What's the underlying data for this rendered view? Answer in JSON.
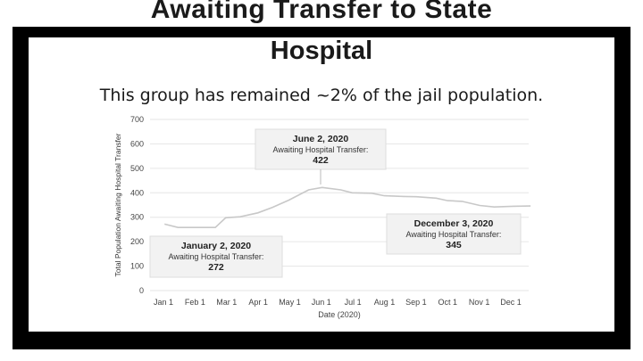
{
  "header": {
    "title_line1": "Awaiting Transfer to State",
    "title_line2": "Hospital",
    "subtitle": "This group has remained ~2% of the jail population."
  },
  "chart_data": {
    "type": "line",
    "xlabel": "Date (2020)",
    "ylabel": "Total Population Awaiting Hospital Transfer",
    "ylim": [
      0,
      700
    ],
    "yticks": [
      0,
      100,
      200,
      300,
      400,
      500,
      600,
      700
    ],
    "xticks": [
      "Jan 1",
      "Feb 1",
      "Mar 1",
      "Apr 1",
      "May 1",
      "Jun 1",
      "Jul 1",
      "Aug 1",
      "Sep 1",
      "Oct 1",
      "Nov 1",
      "Dec 1"
    ],
    "series": [
      {
        "color": "#c8c8c8",
        "points": [
          {
            "x": "2020-01-02",
            "y": 272
          },
          {
            "x": "2020-01-15",
            "y": 258
          },
          {
            "x": "2020-02-01",
            "y": 258
          },
          {
            "x": "2020-02-20",
            "y": 258
          },
          {
            "x": "2020-03-01",
            "y": 298
          },
          {
            "x": "2020-03-15",
            "y": 302
          },
          {
            "x": "2020-04-01",
            "y": 318
          },
          {
            "x": "2020-04-15",
            "y": 340
          },
          {
            "x": "2020-05-01",
            "y": 370
          },
          {
            "x": "2020-05-20",
            "y": 412
          },
          {
            "x": "2020-06-02",
            "y": 422
          },
          {
            "x": "2020-06-20",
            "y": 412
          },
          {
            "x": "2020-07-01",
            "y": 400
          },
          {
            "x": "2020-07-20",
            "y": 398
          },
          {
            "x": "2020-08-01",
            "y": 388
          },
          {
            "x": "2020-08-20",
            "y": 385
          },
          {
            "x": "2020-09-01",
            "y": 384
          },
          {
            "x": "2020-09-20",
            "y": 378
          },
          {
            "x": "2020-10-01",
            "y": 368
          },
          {
            "x": "2020-10-15",
            "y": 365
          },
          {
            "x": "2020-11-01",
            "y": 348
          },
          {
            "x": "2020-11-15",
            "y": 342
          },
          {
            "x": "2020-12-03",
            "y": 345
          },
          {
            "x": "2020-12-20",
            "y": 346
          }
        ]
      }
    ],
    "annotations": [
      {
        "date": "January 2, 2020",
        "label": "Awaiting Hospital Transfer:",
        "value": "272"
      },
      {
        "date": "June 2, 2020",
        "label": "Awaiting Hospital Transfer:",
        "value": "422"
      },
      {
        "date": "December 3, 2020",
        "label": "Awaiting Hospital Transfer:",
        "value": "345"
      }
    ]
  }
}
